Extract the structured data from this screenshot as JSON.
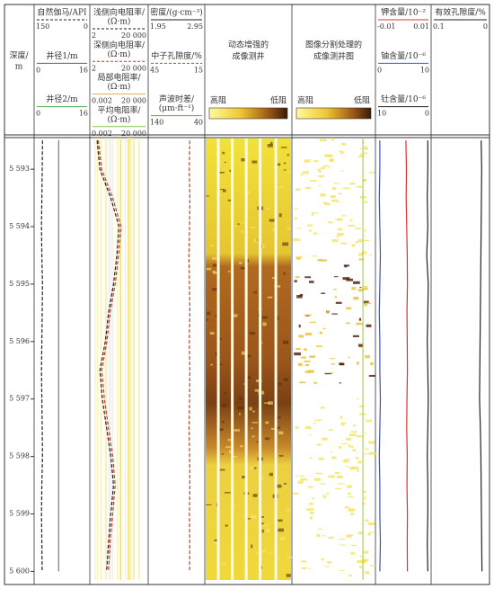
{
  "depth_axis": {
    "title": [
      "深度/",
      "m"
    ],
    "lim": [
      5592.45,
      5600.15
    ],
    "ticks": [
      {
        "value": 5593,
        "label": "5 593"
      },
      {
        "value": 5594,
        "label": "5 594"
      },
      {
        "value": 5595,
        "label": "5 595"
      },
      {
        "value": 5596,
        "label": "5 596"
      },
      {
        "value": 5597,
        "label": "5 597"
      },
      {
        "value": 5598,
        "label": "5 598"
      },
      {
        "value": 5599,
        "label": "5 599"
      },
      {
        "value": 5600,
        "label": "5 600"
      }
    ]
  },
  "depths": [
    5592.5,
    5593,
    5593.5,
    5594,
    5594.5,
    5595,
    5595.5,
    5596,
    5596.5,
    5597,
    5597.5,
    5598,
    5598.5,
    5599,
    5599.5,
    5600
  ],
  "tracks": [
    {
      "kind": "curves",
      "curves": [
        {
          "label": [
            "自然伽马/API"
          ],
          "scale": [
            150,
            0
          ],
          "color": "#222222",
          "dash": true,
          "values": [
            131,
            132,
            133,
            134,
            133,
            131,
            132,
            133,
            134,
            133,
            132,
            131,
            133,
            134,
            133,
            132
          ]
        },
        {
          "label": [
            "井径1/m"
          ],
          "scale": [
            0,
            16
          ],
          "color": "#7b3fa0",
          "dash": false,
          "values": [
            7,
            7,
            7,
            7,
            7,
            7,
            7,
            7,
            7,
            7,
            7,
            7,
            7,
            7,
            7,
            7
          ]
        },
        {
          "label": [
            "井径2/m"
          ],
          "scale": [
            0,
            16
          ],
          "color": "#4caf50",
          "dash": false,
          "values": [
            7,
            7,
            7,
            7,
            7,
            7,
            7,
            7,
            7,
            7,
            7,
            7,
            7,
            7,
            7,
            7
          ]
        }
      ]
    },
    {
      "kind": "curves",
      "log": true,
      "curves": [
        {
          "label": [
            "浅侧向电阻率/",
            "(Ω·m)"
          ],
          "scale": [
            2,
            {
              "value": 20000,
              "label": "20 000"
            }
          ],
          "color": "#222222",
          "dash": true,
          "values": [
            5,
            8,
            50,
            200,
            140,
            80,
            34,
            20,
            8,
            12,
            25,
            50,
            80,
            50,
            34,
            25
          ]
        },
        {
          "label": [
            "深侧向电阻率/",
            "(Ω·m)"
          ],
          "scale": [
            2,
            {
              "value": 20000,
              "label": "20 000"
            }
          ],
          "color": "#d9342b",
          "dash": true,
          "values": [
            6.2,
            10.9,
            69,
            283,
            186,
            105,
            45,
            26,
            11,
            17,
            34,
            69,
            105,
            69,
            45,
            34
          ]
        },
        {
          "label": [
            "局部电阻率/",
            "(Ω·m)"
          ],
          "scale": [
            0.002,
            {
              "value": 20000,
              "label": "20 000"
            }
          ],
          "color": "#e8b04a",
          "dash": false
        },
        {
          "label": [
            "平均电阻率/",
            "(Ω·m)"
          ],
          "scale": [
            0.002,
            {
              "value": 20000,
              "label": "20 000"
            }
          ],
          "color": "#8bc34a",
          "dash": false
        }
      ]
    },
    {
      "kind": "curves",
      "curves": [
        {
          "label": [
            "密度/(g·cm⁻³)"
          ],
          "scale": [
            1.95,
            2.95
          ],
          "color": "#222222",
          "dash": false
        },
        {
          "label": [
            "中子孔隙度/%"
          ],
          "scale": [
            45,
            15
          ],
          "color": "#b5482b",
          "dash": true,
          "values": [
            22.5,
            22.8,
            22.4,
            22.6,
            23,
            22.7,
            22.4,
            22.8,
            22.5,
            22.6,
            22.9,
            22.6,
            22.4,
            22.7,
            22.5,
            22.6
          ]
        },
        {
          "label": [
            "声波时差/",
            "(μm·ft⁻¹)"
          ],
          "scale": [
            140,
            40
          ],
          "color": "#4caf50",
          "dash": false
        }
      ]
    },
    {
      "kind": "image",
      "title": [
        "动态增强的",
        "成像测井"
      ],
      "colorbar": [
        "高阻",
        "低阻"
      ]
    },
    {
      "kind": "image",
      "title": [
        "图像分割处理的",
        "成像测井图"
      ],
      "colorbar": [
        "高阻",
        "低阻"
      ]
    },
    {
      "kind": "curves",
      "curves": [
        {
          "label": [
            "钾含量/10⁻²"
          ],
          "scale": [
            -0.01,
            0.01
          ],
          "color": "#d9342b",
          "dash": false,
          "values": [
            0.001,
            0.0012,
            0.0011,
            0.0013,
            0.0015,
            0.0016,
            0.0014,
            0.0015,
            0.0016,
            0.0014,
            0.0013,
            0.0015,
            0.0014,
            0.0016,
            0.0015,
            0.0016
          ]
        },
        {
          "label": [
            "铀含量/10⁻⁶"
          ],
          "scale": [
            0,
            10
          ],
          "color": "#3f51b5",
          "dash": false,
          "values": [
            0.5,
            0.5,
            0.4,
            0.5,
            0.6,
            0.5,
            0.4,
            0.5,
            0.5,
            0.6,
            0.5,
            0.4,
            0.5,
            0.5,
            0.6,
            0.5
          ]
        },
        {
          "label": [
            "钍含量/10⁻⁶"
          ],
          "scale": [
            10,
            0
          ],
          "color": "#222222",
          "dash": false,
          "values": [
            0.3,
            0.3,
            0.4,
            0.3,
            0.5,
            0.2,
            0.3,
            0.4,
            0.3,
            0.2,
            0.3,
            0.4,
            0.3,
            0.3,
            0.4,
            0.3
          ]
        }
      ]
    },
    {
      "kind": "curves",
      "curves": [
        {
          "label": [
            "有效孔隙度/%"
          ],
          "scale": [
            0.1,
            0
          ],
          "color": "#222222",
          "dash": false,
          "values": [
            0.012,
            0.011,
            0.0115,
            0.012,
            0.0125,
            0.013,
            0.0135,
            0.014,
            0.0145,
            0.015,
            0.0135,
            0.0125,
            0.012,
            0.0115,
            0.011,
            0.0105
          ]
        }
      ]
    }
  ]
}
